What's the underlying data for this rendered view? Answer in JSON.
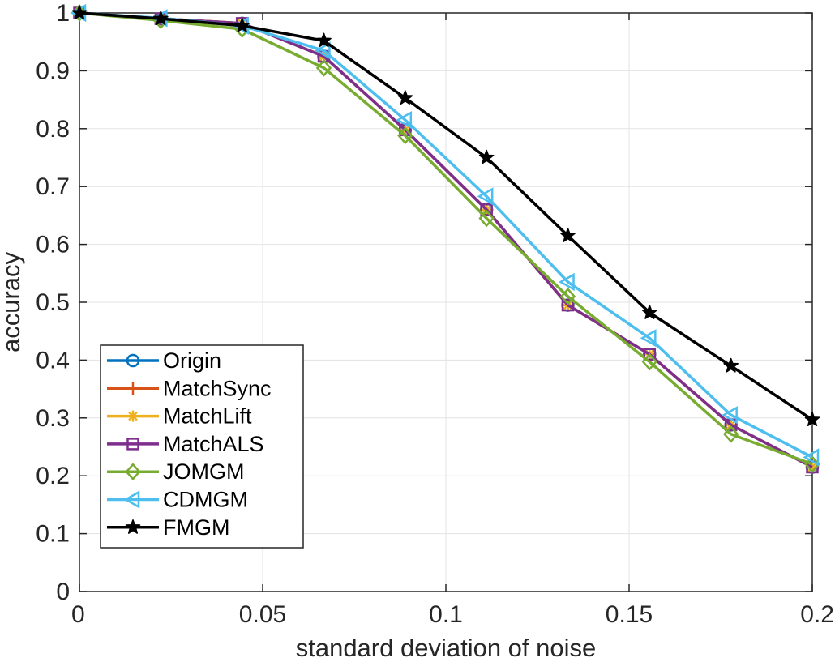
{
  "chart_data": {
    "type": "line",
    "title": "",
    "xlabel": "standard deviation of noise",
    "ylabel": "accuracy",
    "xlim": [
      0,
      0.2
    ],
    "ylim": [
      0,
      1
    ],
    "grid": true,
    "legend_position": "bottom-left",
    "x": [
      0,
      0.0222,
      0.0444,
      0.0667,
      0.0889,
      0.1111,
      0.1333,
      0.1556,
      0.1778,
      0.2
    ],
    "x_ticks": [
      {
        "value": 0,
        "label": "0"
      },
      {
        "value": 0.05,
        "label": "0.05"
      },
      {
        "value": 0.1,
        "label": "0.1"
      },
      {
        "value": 0.15,
        "label": "0.15"
      },
      {
        "value": 0.2,
        "label": "0.2"
      }
    ],
    "y_ticks": [
      {
        "value": 0,
        "label": "0"
      },
      {
        "value": 0.1,
        "label": "0.1"
      },
      {
        "value": 0.2,
        "label": "0.2"
      },
      {
        "value": 0.3,
        "label": "0.3"
      },
      {
        "value": 0.4,
        "label": "0.4"
      },
      {
        "value": 0.5,
        "label": "0.5"
      },
      {
        "value": 0.6,
        "label": "0.6"
      },
      {
        "value": 0.7,
        "label": "0.7"
      },
      {
        "value": 0.8,
        "label": "0.8"
      },
      {
        "value": 0.9,
        "label": "0.9"
      },
      {
        "value": 1,
        "label": "1"
      }
    ],
    "series": [
      {
        "name": "Origin",
        "color": "#0072BD",
        "marker": "circle",
        "values": [
          1.0,
          0.99,
          0.982,
          0.925,
          0.798,
          0.66,
          0.495,
          0.41,
          0.288,
          0.215
        ]
      },
      {
        "name": "MatchSync",
        "color": "#D95319",
        "marker": "plus",
        "values": [
          1.0,
          0.99,
          0.982,
          0.925,
          0.798,
          0.66,
          0.495,
          0.41,
          0.288,
          0.215
        ]
      },
      {
        "name": "MatchLift",
        "color": "#EDB120",
        "marker": "asterisk",
        "values": [
          1.0,
          0.99,
          0.982,
          0.925,
          0.798,
          0.66,
          0.495,
          0.41,
          0.288,
          0.215
        ]
      },
      {
        "name": "MatchALS",
        "color": "#7E2F8E",
        "marker": "square",
        "values": [
          1.0,
          0.99,
          0.982,
          0.925,
          0.798,
          0.66,
          0.495,
          0.41,
          0.288,
          0.215
        ]
      },
      {
        "name": "JOMGM",
        "color": "#77AC30",
        "marker": "diamond",
        "values": [
          1.0,
          0.987,
          0.972,
          0.905,
          0.788,
          0.645,
          0.51,
          0.397,
          0.272,
          0.22
        ]
      },
      {
        "name": "CDMGM",
        "color": "#4DBEEE",
        "marker": "triangle-left",
        "values": [
          1.0,
          0.991,
          0.978,
          0.935,
          0.815,
          0.683,
          0.535,
          0.438,
          0.305,
          0.232
        ]
      },
      {
        "name": "FMGM",
        "color": "#000000",
        "marker": "pentagram",
        "values": [
          1.0,
          0.99,
          0.978,
          0.952,
          0.853,
          0.75,
          0.615,
          0.482,
          0.39,
          0.297
        ]
      }
    ]
  }
}
